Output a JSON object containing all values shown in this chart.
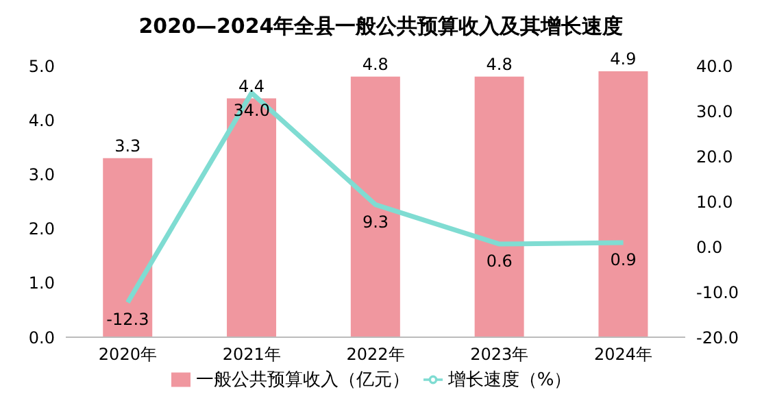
{
  "chart_data": {
    "type": "bar",
    "title": "2020—2024年全县一般公共预算收入及其增长速度",
    "categories": [
      "2020年",
      "2021年",
      "2022年",
      "2023年",
      "2024年"
    ],
    "series": [
      {
        "name": "一般公共预算收入（亿元）",
        "color": "#f0979f",
        "values": [
          3.3,
          4.4,
          4.8,
          4.8,
          4.9
        ],
        "value_labels": [
          "3.3",
          "4.4",
          "4.8",
          "4.8",
          "4.9"
        ]
      },
      {
        "name": "增长速度（%）",
        "type": "line",
        "axis": "y2",
        "color": "#7fdcd2",
        "values": [
          -12.3,
          34.0,
          9.3,
          0.6,
          0.9
        ],
        "value_labels": [
          "-12.3",
          "34.0",
          "9.3",
          "0.6",
          "0.9"
        ]
      }
    ],
    "ylim": [
      0,
      5
    ],
    "yticks": [
      {
        "value": 0,
        "label": "0.0"
      },
      {
        "value": 1,
        "label": "1.0"
      },
      {
        "value": 2,
        "label": "2.0"
      },
      {
        "value": 3,
        "label": "3.0"
      },
      {
        "value": 4,
        "label": "4.0"
      },
      {
        "value": 5,
        "label": "5.0"
      }
    ],
    "y2lim": [
      -20,
      40
    ],
    "y2ticks": [
      {
        "value": -20,
        "label": "-20.0"
      },
      {
        "value": -10,
        "label": "-10.0"
      },
      {
        "value": 0,
        "label": "0.0"
      },
      {
        "value": 10,
        "label": "10.0"
      },
      {
        "value": 20,
        "label": "20.0"
      },
      {
        "value": 30,
        "label": "30.0"
      },
      {
        "value": 40,
        "label": "40.0"
      }
    ],
    "grid": false,
    "legend": "bottom",
    "marker": "none",
    "line_style": "solid"
  }
}
